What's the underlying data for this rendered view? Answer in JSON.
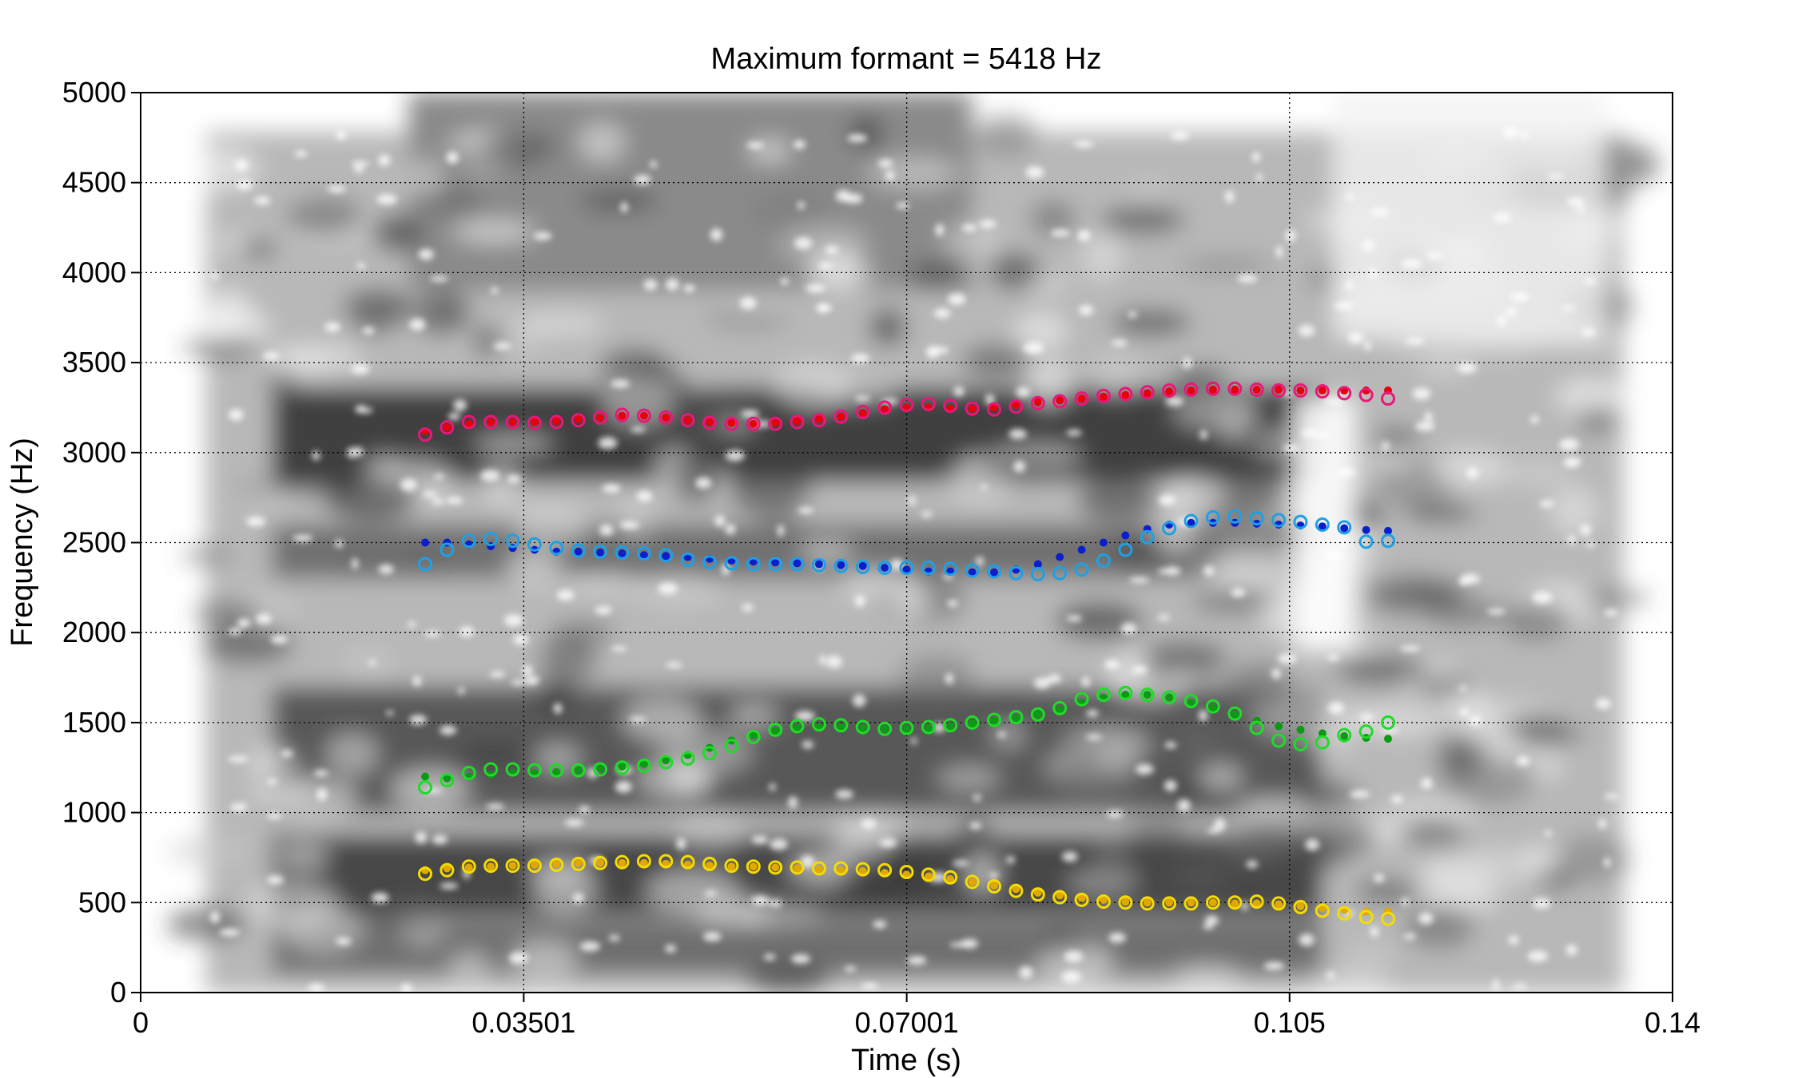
{
  "chart_data": {
    "type": "scatter",
    "title": "Maximum formant = 5418 Hz",
    "xlabel": "Time (s)",
    "ylabel": "Frequency (Hz)",
    "xlim": [
      0,
      0.14
    ],
    "ylim": [
      0,
      5000
    ],
    "x_ticks": [
      0,
      0.03501,
      0.07001,
      0.105,
      0.14
    ],
    "x_tick_labels": [
      "0",
      "0.03501",
      "0.07001",
      "0.105",
      "0.14"
    ],
    "y_ticks": [
      0,
      500,
      1000,
      1500,
      2000,
      2500,
      3000,
      3500,
      4000,
      4500,
      5000
    ],
    "y_tick_labels": [
      "0",
      "500",
      "1000",
      "1500",
      "2000",
      "2500",
      "3000",
      "3500",
      "4000",
      "4500",
      "5000"
    ],
    "grid": true,
    "background": "grayscale spectrogram",
    "series": [
      {
        "color_filled": "#e8000b",
        "color_open": "#e8187a",
        "x": [
          0.026,
          0.028,
          0.03,
          0.032,
          0.034,
          0.036,
          0.038,
          0.04,
          0.042,
          0.044,
          0.046,
          0.048,
          0.05,
          0.052,
          0.054,
          0.056,
          0.058,
          0.06,
          0.062,
          0.064,
          0.066,
          0.068,
          0.07,
          0.072,
          0.074,
          0.076,
          0.078,
          0.08,
          0.082,
          0.084,
          0.086,
          0.088,
          0.09,
          0.092,
          0.094,
          0.096,
          0.098,
          0.1,
          0.102,
          0.104,
          0.106,
          0.108,
          0.11,
          0.112,
          0.114
        ],
        "filled": [
          3120,
          3140,
          3160,
          3170,
          3170,
          3170,
          3175,
          3185,
          3195,
          3205,
          3205,
          3195,
          3180,
          3170,
          3165,
          3160,
          3165,
          3175,
          3185,
          3200,
          3220,
          3240,
          3250,
          3250,
          3245,
          3245,
          3250,
          3265,
          3280,
          3290,
          3300,
          3310,
          3320,
          3330,
          3340,
          3345,
          3350,
          3350,
          3350,
          3350,
          3345,
          3345,
          3345,
          3345,
          3345
        ],
        "open": [
          3100,
          3140,
          3170,
          3170,
          3170,
          3165,
          3170,
          3180,
          3195,
          3210,
          3205,
          3195,
          3180,
          3165,
          3160,
          3160,
          3160,
          3170,
          3180,
          3200,
          3225,
          3250,
          3265,
          3270,
          3260,
          3245,
          3240,
          3255,
          3275,
          3285,
          3300,
          3315,
          3325,
          3335,
          3345,
          3350,
          3355,
          3355,
          3350,
          3345,
          3345,
          3340,
          3330,
          3320,
          3300
        ]
      },
      {
        "color_filled": "#0a1ecc",
        "color_open": "#1ea0e6",
        "x": [
          0.026,
          0.028,
          0.03,
          0.032,
          0.034,
          0.036,
          0.038,
          0.04,
          0.042,
          0.044,
          0.046,
          0.048,
          0.05,
          0.052,
          0.054,
          0.056,
          0.058,
          0.06,
          0.062,
          0.064,
          0.066,
          0.068,
          0.07,
          0.072,
          0.074,
          0.076,
          0.078,
          0.08,
          0.082,
          0.084,
          0.086,
          0.088,
          0.09,
          0.092,
          0.094,
          0.096,
          0.098,
          0.1,
          0.102,
          0.104,
          0.106,
          0.108,
          0.11,
          0.112,
          0.114
        ],
        "filled": [
          2500,
          2500,
          2490,
          2480,
          2470,
          2460,
          2450,
          2450,
          2445,
          2440,
          2430,
          2425,
          2420,
          2410,
          2400,
          2395,
          2390,
          2385,
          2380,
          2375,
          2370,
          2360,
          2350,
          2340,
          2340,
          2335,
          2335,
          2350,
          2380,
          2420,
          2460,
          2500,
          2540,
          2575,
          2600,
          2610,
          2610,
          2610,
          2605,
          2600,
          2595,
          2590,
          2580,
          2570,
          2565
        ],
        "open": [
          2380,
          2460,
          2510,
          2520,
          2510,
          2490,
          2470,
          2455,
          2450,
          2445,
          2440,
          2430,
          2405,
          2390,
          2385,
          2380,
          2380,
          2380,
          2375,
          2370,
          2365,
          2360,
          2360,
          2360,
          2355,
          2345,
          2340,
          2330,
          2325,
          2330,
          2350,
          2400,
          2460,
          2530,
          2580,
          2620,
          2640,
          2645,
          2635,
          2625,
          2615,
          2600,
          2585,
          2505,
          2510
        ]
      },
      {
        "color_filled": "#0a9a14",
        "color_open": "#1edc28",
        "x": [
          0.026,
          0.028,
          0.03,
          0.032,
          0.034,
          0.036,
          0.038,
          0.04,
          0.042,
          0.044,
          0.046,
          0.048,
          0.05,
          0.052,
          0.054,
          0.056,
          0.058,
          0.06,
          0.062,
          0.064,
          0.066,
          0.068,
          0.07,
          0.072,
          0.074,
          0.076,
          0.078,
          0.08,
          0.082,
          0.084,
          0.086,
          0.088,
          0.09,
          0.092,
          0.094,
          0.096,
          0.098,
          0.1,
          0.102,
          0.104,
          0.106,
          0.108,
          0.11,
          0.112,
          0.114
        ],
        "filled": [
          1200,
          1190,
          1200,
          1210,
          1220,
          1220,
          1225,
          1235,
          1245,
          1255,
          1270,
          1290,
          1320,
          1360,
          1400,
          1430,
          1455,
          1470,
          1475,
          1475,
          1470,
          1465,
          1465,
          1470,
          1480,
          1495,
          1510,
          1525,
          1545,
          1570,
          1610,
          1640,
          1655,
          1655,
          1640,
          1610,
          1580,
          1545,
          1510,
          1480,
          1460,
          1440,
          1425,
          1415,
          1410
        ],
        "open": [
          1140,
          1180,
          1220,
          1240,
          1240,
          1235,
          1235,
          1235,
          1240,
          1250,
          1260,
          1280,
          1300,
          1330,
          1370,
          1420,
          1460,
          1480,
          1490,
          1485,
          1475,
          1465,
          1470,
          1475,
          1485,
          1500,
          1515,
          1530,
          1545,
          1580,
          1630,
          1655,
          1665,
          1655,
          1640,
          1620,
          1590,
          1550,
          1470,
          1400,
          1380,
          1390,
          1430,
          1450,
          1500
        ]
      },
      {
        "color_filled": "#e0a800",
        "color_open": "#f5dc00",
        "x": [
          0.026,
          0.028,
          0.03,
          0.032,
          0.034,
          0.036,
          0.038,
          0.04,
          0.042,
          0.044,
          0.046,
          0.048,
          0.05,
          0.052,
          0.054,
          0.056,
          0.058,
          0.06,
          0.062,
          0.064,
          0.066,
          0.068,
          0.07,
          0.072,
          0.074,
          0.076,
          0.078,
          0.08,
          0.082,
          0.084,
          0.086,
          0.088,
          0.09,
          0.092,
          0.094,
          0.096,
          0.098,
          0.1,
          0.102,
          0.104,
          0.106,
          0.108,
          0.11,
          0.112,
          0.114
        ],
        "filled": [
          680,
          690,
          695,
          700,
          705,
          710,
          715,
          720,
          720,
          720,
          720,
          715,
          710,
          705,
          700,
          700,
          695,
          690,
          685,
          680,
          675,
          665,
          655,
          645,
          630,
          615,
          595,
          575,
          555,
          540,
          525,
          515,
          505,
          500,
          500,
          500,
          500,
          495,
          495,
          490,
          480,
          470,
          460,
          450,
          450
        ],
        "open": [
          660,
          680,
          700,
          705,
          705,
          705,
          710,
          715,
          720,
          725,
          730,
          730,
          725,
          715,
          705,
          700,
          695,
          695,
          690,
          690,
          685,
          680,
          670,
          655,
          640,
          615,
          590,
          565,
          545,
          530,
          515,
          505,
          500,
          495,
          495,
          495,
          500,
          500,
          505,
          495,
          475,
          455,
          440,
          420,
          410
        ]
      }
    ]
  }
}
